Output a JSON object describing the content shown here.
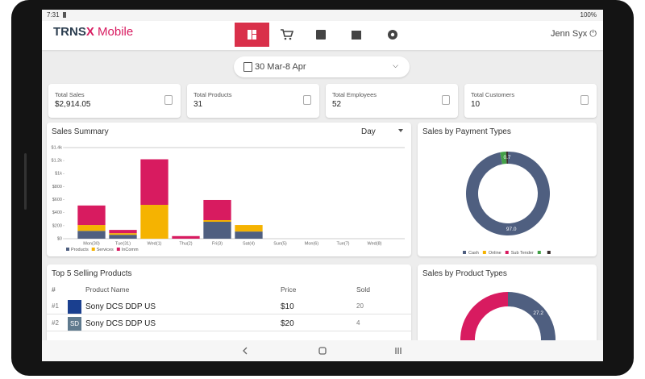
{
  "status_bar": {
    "time": "7:31",
    "battery": "100%"
  },
  "header": {
    "brand": "TRNS",
    "brand_accent": "X",
    "brand_suffix": "Mobile",
    "user": "Jenn Syx"
  },
  "date_range": "30 Mar-8 Apr",
  "kpis": [
    {
      "label": "Total Sales",
      "value": "$2,914.05"
    },
    {
      "label": "Total Products",
      "value": "31"
    },
    {
      "label": "Total Employees",
      "value": "52"
    },
    {
      "label": "Total Customers",
      "value": "10"
    }
  ],
  "sales_summary": {
    "title": "Sales Summary",
    "period": "Day",
    "chart_data": {
      "type": "bar",
      "stacked": true,
      "categories": [
        "Mon(30)",
        "Tue(31)",
        "Wed(1)",
        "Thu(2)",
        "Fri(3)",
        "Sat(4)",
        "Sun(5)",
        "Mon(6)",
        "Tue(7)",
        "Wed(8)"
      ],
      "series": [
        {
          "name": "Products",
          "color": "#4f5f80",
          "values": [
            120,
            60,
            0,
            0,
            260,
            110,
            0,
            0,
            0,
            0
          ]
        },
        {
          "name": "Services",
          "color": "#f5b301",
          "values": [
            90,
            25,
            520,
            0,
            25,
            100,
            0,
            0,
            0,
            0
          ]
        },
        {
          "name": "InComm",
          "color": "#d81b60",
          "values": [
            300,
            50,
            700,
            40,
            310,
            0,
            0,
            0,
            0,
            0
          ]
        }
      ],
      "ylim": [
        0,
        1400
      ],
      "yticks": [
        {
          "value": 0,
          "label": "$0"
        },
        {
          "value": 200,
          "label": "$200"
        },
        {
          "value": 400,
          "label": "$400"
        },
        {
          "value": 600,
          "label": "$600"
        },
        {
          "value": 800,
          "label": "$800"
        },
        {
          "value": 1000,
          "label": "$1k"
        },
        {
          "value": 1200,
          "label": "$1.2k"
        },
        {
          "value": 1400,
          "label": "$1.4k"
        }
      ],
      "grid": false,
      "legend": "bottom"
    }
  },
  "payment_types": {
    "title": "Sales by Payment Types",
    "chart_data": {
      "type": "donut",
      "categories": [
        "Cash",
        "Online",
        "Sub Tender",
        null,
        null
      ],
      "values": [
        97.0,
        0,
        0,
        2.3,
        0.7
      ],
      "value_labels": [
        "97.0",
        null,
        null,
        null,
        "0.7"
      ],
      "colors": [
        "#4f5f80",
        "#f5b301",
        "#d81b60",
        "#43a047",
        "#3b2f2f"
      ],
      "legend": "bottom"
    }
  },
  "top_products": {
    "title": "Top 5 Selling Products",
    "columns": [
      "#",
      "Product Name",
      "Price",
      "Sold"
    ],
    "rows": [
      {
        "rank": "#1",
        "name": "Sony DCS DDP US",
        "price": "$10",
        "sold": "20"
      },
      {
        "rank": "#2",
        "icon_text": "SD",
        "name": "Sony DCS DDP US",
        "price": "$20",
        "sold": "4"
      }
    ]
  },
  "product_types": {
    "title": "Sales by Product Types",
    "chart_data": {
      "type": "donut",
      "values": [
        27.2,
        72.8
      ],
      "value_labels": [
        "27.2",
        null
      ],
      "colors": [
        "#4f5f80",
        "#d81b60"
      ]
    }
  }
}
